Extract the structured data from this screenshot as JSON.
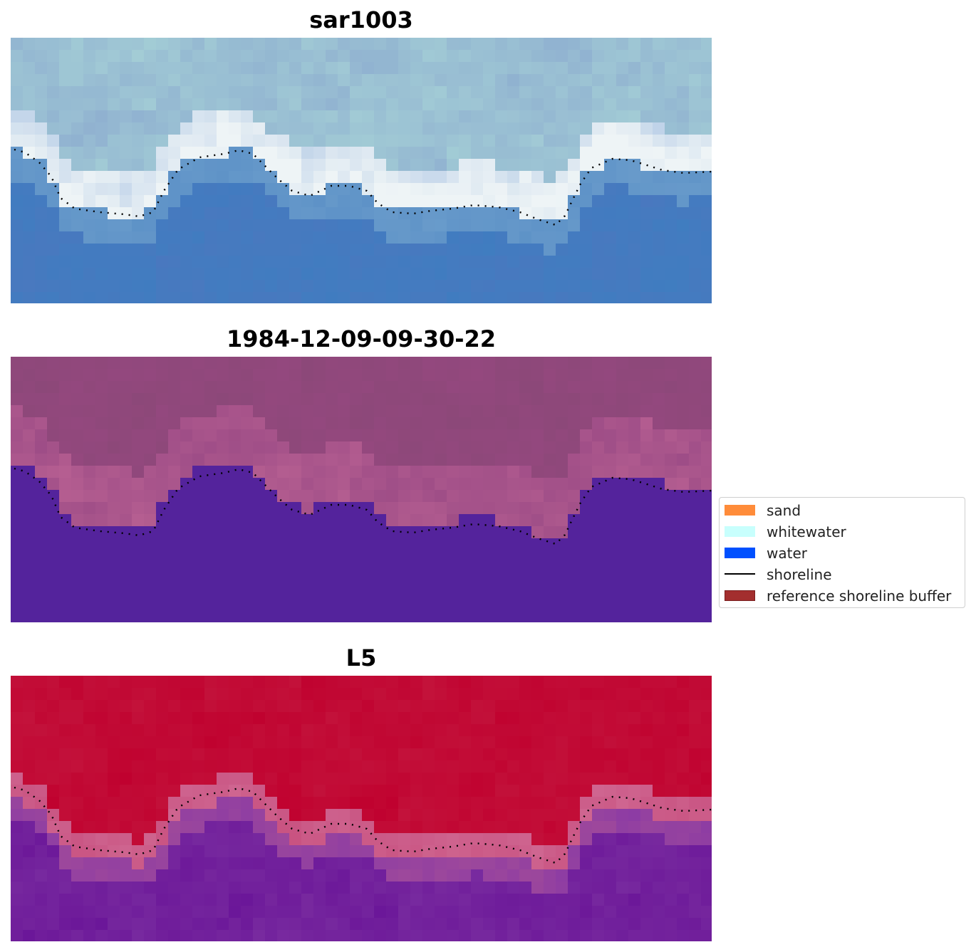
{
  "panels": [
    {
      "id": "rgb",
      "title": "sar1003"
    },
    {
      "id": "class",
      "title": "1984-12-09-09-30-22"
    },
    {
      "id": "index",
      "title": "L5"
    }
  ],
  "legend": {
    "items": [
      {
        "label": "sand",
        "color": "#ff8c3a",
        "type": "patch"
      },
      {
        "label": "whitewater",
        "color": "#c8fffd",
        "type": "patch"
      },
      {
        "label": "water",
        "color": "#0050ff",
        "type": "patch"
      },
      {
        "label": "shoreline",
        "color": "#000000",
        "type": "line"
      },
      {
        "label": "reference shoreline buffer",
        "color": "#a32e2e",
        "type": "patch"
      }
    ]
  },
  "colors": {
    "water_class": "#54239c",
    "land_class": "#95487f",
    "index_high": "#c0002e",
    "index_low": "#7a2da0"
  }
}
